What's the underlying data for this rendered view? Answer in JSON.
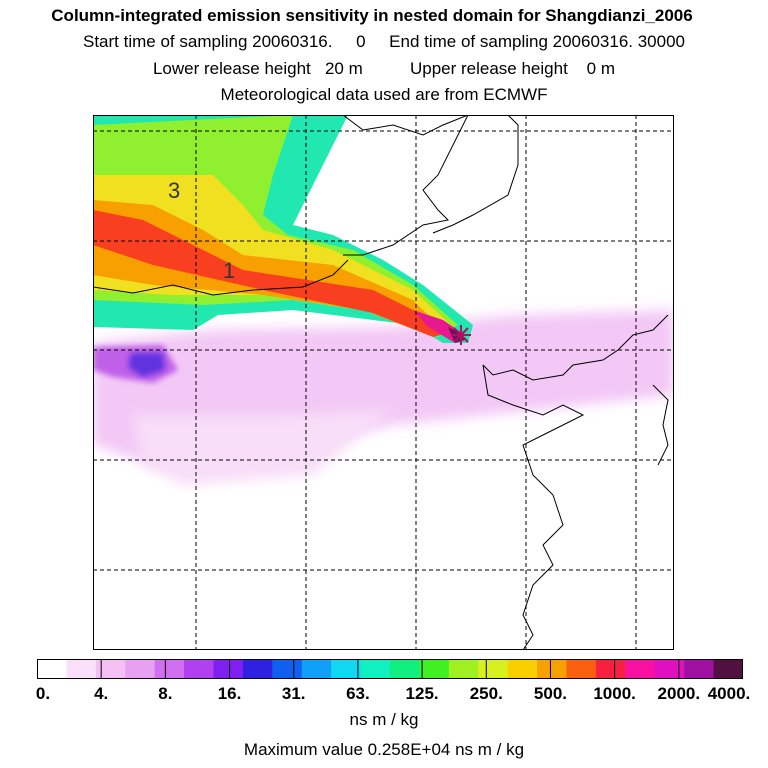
{
  "header": {
    "title": "Column-integrated emission sensitivity in nested domain for Shangdianzi_2006",
    "sampling": "Start time of sampling 20060316.     0     End time of sampling 20060316. 30000",
    "release": "Lower release height   20 m          Upper release height    0 m",
    "met": "Meteorological data used are from ECMWF"
  },
  "map": {
    "contour_labels": [
      "3",
      "1"
    ],
    "receptor_marker": "star-marker"
  },
  "colorbar": {
    "tick_labels": [
      "0.",
      "4.",
      "8.",
      "16.",
      "31.",
      "63.",
      "125.",
      "250.",
      "500.",
      "1000.",
      "2000.",
      "4000."
    ],
    "colors": [
      "#ffffff",
      "#fbe0fb",
      "#f4c0f4",
      "#e8a0f0",
      "#d070f0",
      "#b040f0",
      "#8020f0",
      "#3020e0",
      "#1060f0",
      "#10a0f8",
      "#10d8f0",
      "#10f0c0",
      "#10f080",
      "#40f020",
      "#a0f020",
      "#d8f020",
      "#f8d000",
      "#f8a000",
      "#f86010",
      "#f82040",
      "#f810a0",
      "#e010c0",
      "#a010a0",
      "#501040"
    ],
    "units": "ns m / kg",
    "max_value": "Maximum value  0.258E+04 ns m / kg"
  }
}
